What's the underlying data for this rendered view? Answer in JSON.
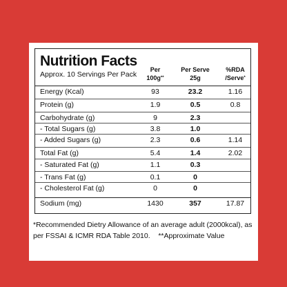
{
  "title": "Nutrition Facts",
  "subtitle": "Approx. 10 Servings Per Pack",
  "columns": [
    {
      "line1": "Per",
      "line2": "100g",
      "sup": "**"
    },
    {
      "line1": "Per Serve",
      "line2": "25g",
      "sup": null
    },
    {
      "line1": "%RDA",
      "line2": "/Serve",
      "sup": "*"
    }
  ],
  "rows": [
    {
      "name": "Energy (Kcal)",
      "values": [
        "93",
        "23.2",
        "1.16"
      ]
    },
    {
      "name": "Protein (g)",
      "values": [
        "1.9",
        "0.5",
        "0.8"
      ]
    },
    {
      "name": "Carbohydrate (g)",
      "values": [
        "9",
        "2.3",
        null
      ]
    },
    {
      "name": "- Total Sugars (g)",
      "values": [
        "3.8",
        "1.0",
        null
      ]
    },
    {
      "name": "- Added Sugars (g)",
      "values": [
        "2.3",
        "0.6",
        "1.14"
      ]
    },
    {
      "name": "Total Fat (g)",
      "values": [
        "5.4",
        "1.4",
        "2.02"
      ]
    },
    {
      "name": "- Saturated Fat (g)",
      "values": [
        "1.1",
        "0.3",
        null
      ]
    },
    {
      "name": "- Trans Fat (g)",
      "values": [
        "0.1",
        "0",
        null
      ]
    },
    {
      "name": "- Cholesterol Fat (g)",
      "values": [
        "0",
        "0",
        null
      ]
    },
    {
      "name": "Sodium (mg)",
      "values": [
        "1430",
        "357",
        "17.87"
      ]
    }
  ],
  "footnote": {
    "rda": "*Recommended Dietry Allowance of an average adult (2000kcal), as per FSSAI & ICMR RDA Table 2010.",
    "approx": "**Approximate Value"
  }
}
